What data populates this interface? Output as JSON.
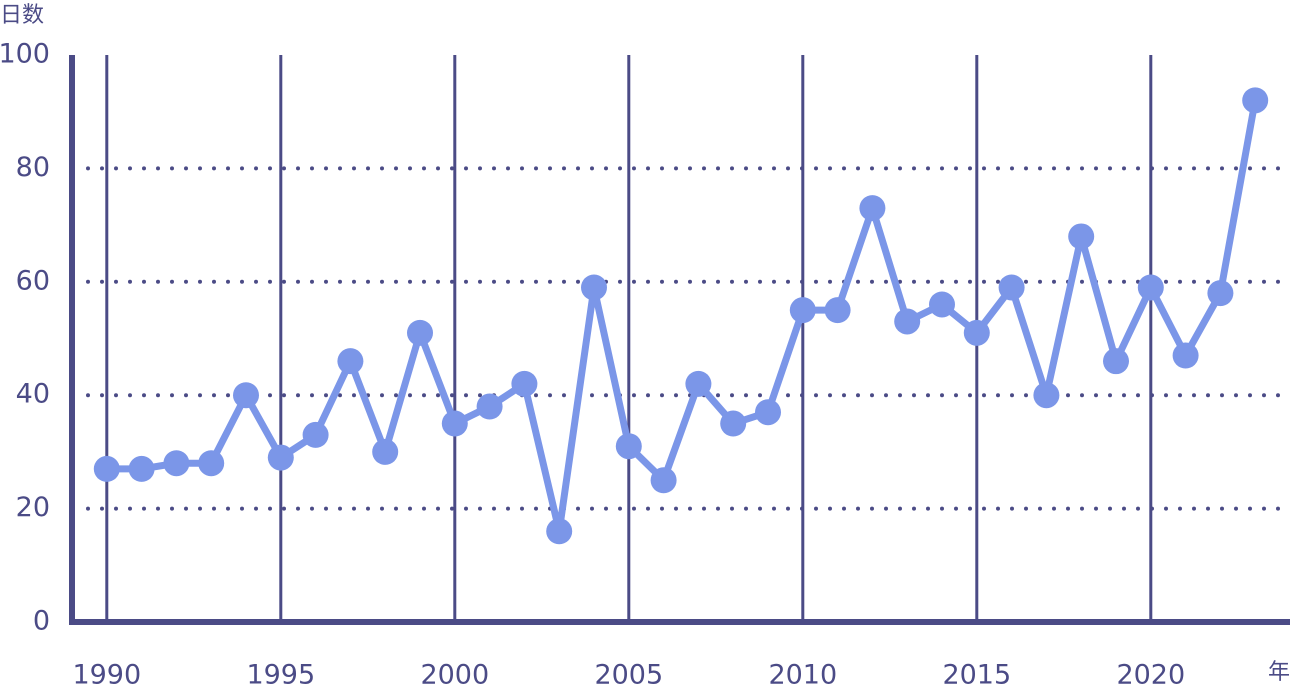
{
  "chart_data": {
    "type": "line",
    "y_label": "日数",
    "x_label": "年",
    "x": [
      1990,
      1991,
      1992,
      1993,
      1994,
      1995,
      1996,
      1997,
      1998,
      1999,
      2000,
      2001,
      2002,
      2003,
      2004,
      2005,
      2006,
      2007,
      2008,
      2009,
      2010,
      2011,
      2012,
      2013,
      2014,
      2015,
      2016,
      2017,
      2018,
      2019,
      2020,
      2021,
      2022,
      2023
    ],
    "series": [
      {
        "color": "#7b96e8",
        "values": [
          27,
          27,
          28,
          28,
          40,
          29,
          33,
          46,
          30,
          51,
          35,
          38,
          42,
          16,
          59,
          31,
          25,
          42,
          35,
          37,
          55,
          55,
          73,
          53,
          56,
          51,
          59,
          40,
          68,
          46,
          59,
          47,
          58,
          92
        ]
      }
    ],
    "xlim": [
      1989,
      2024
    ],
    "xticks": [
      1990,
      1995,
      2000,
      2005,
      2010,
      2015,
      2020
    ],
    "ylim": [
      0,
      100
    ],
    "yticks": [
      0,
      20,
      40,
      60,
      80,
      100
    ],
    "grid": true
  }
}
